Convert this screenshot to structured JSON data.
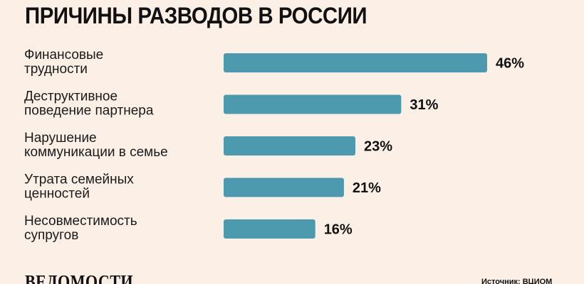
{
  "page": {
    "background": "#fbefe6",
    "bar_color": "#4d9aae"
  },
  "title": "ПРИЧИНЫ РАЗВОДОВ В РОССИИ",
  "chart_data": {
    "type": "bar",
    "orientation": "horizontal",
    "categories": [
      [
        "Финансовые",
        "трудности"
      ],
      [
        "Деструктивное",
        "поведение партнера"
      ],
      [
        "Нарушение",
        "коммуникации в семье"
      ],
      [
        "Утрата семейных",
        "ценностей"
      ],
      [
        "Несовместимость",
        "супругов"
      ]
    ],
    "values": [
      46,
      31,
      23,
      21,
      16
    ],
    "value_labels": [
      "46%",
      "31%",
      "23%",
      "21%",
      "16%"
    ],
    "unit": "%",
    "grid": false,
    "legend": "none"
  },
  "footer": {
    "logo": "ВЕДОМОСТИ",
    "source": "Источник: ВЦИОМ"
  }
}
